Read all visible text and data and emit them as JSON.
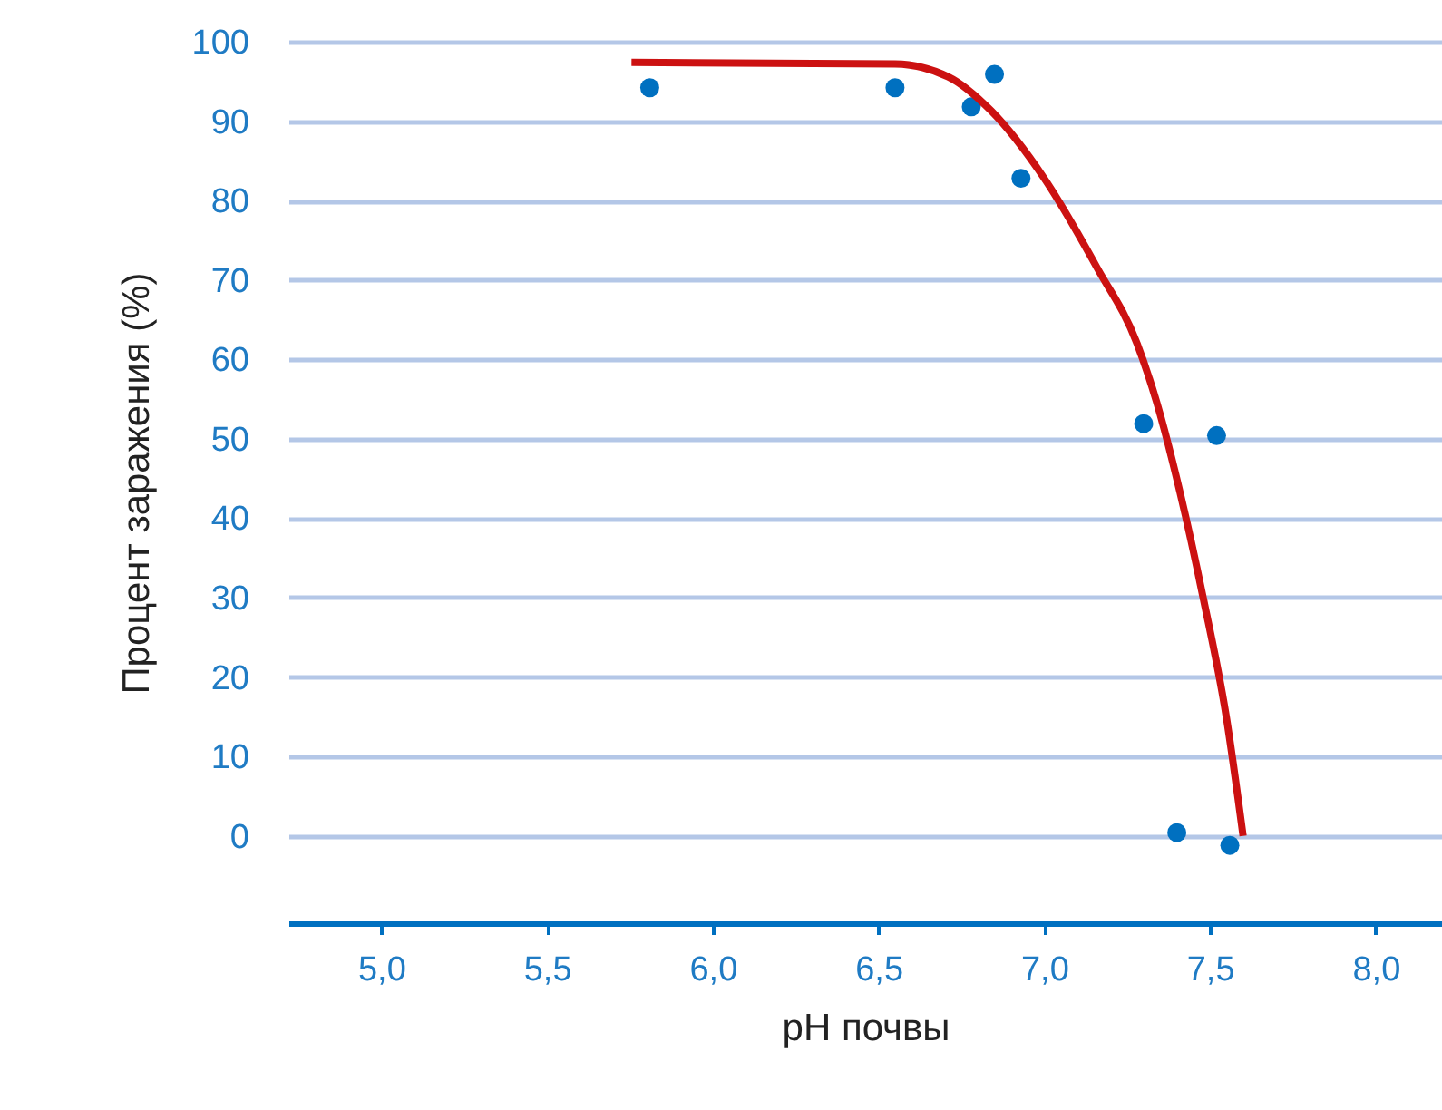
{
  "chart_data": {
    "type": "scatter",
    "xlabel": "pH почвы",
    "ylabel": "Процент заражения (%)",
    "xlim": [
      4.72,
      8.2
    ],
    "ylim": [
      -11,
      100
    ],
    "xticks": [
      {
        "value": 5,
        "label": "5,0"
      },
      {
        "value": 5.5,
        "label": "5,5"
      },
      {
        "value": 6,
        "label": "6,0"
      },
      {
        "value": 6.5,
        "label": "6,5"
      },
      {
        "value": 7,
        "label": "7,0"
      },
      {
        "value": 7.5,
        "label": "7,5"
      },
      {
        "value": 8,
        "label": "8,0"
      }
    ],
    "yticks": [
      0,
      10,
      20,
      30,
      40,
      50,
      60,
      70,
      80,
      90,
      100
    ],
    "grid": "y",
    "series": [
      {
        "color": "#0070c0",
        "marker": "circle",
        "x": [
          5.81,
          6.55,
          6.78,
          6.85,
          6.93,
          7.3,
          7.52,
          7.4,
          7.56
        ],
        "values": [
          94.2,
          94.2,
          91.8,
          95.9,
          82.8,
          51.9,
          50.4,
          0.4,
          -1.2
        ]
      },
      {
        "type": "line",
        "color": "#cc1111",
        "line_style": "solid",
        "x": [
          5.755,
          6.55,
          6.71,
          6.84,
          7.0,
          7.16,
          7.28,
          7.34,
          7.41,
          7.48,
          7.55,
          7.6
        ],
        "values": [
          97.4,
          97.2,
          95.6,
          91.3,
          82.8,
          71.5,
          62.0,
          54.5,
          43.2,
          29.9,
          14.8,
          0
        ]
      }
    ]
  }
}
